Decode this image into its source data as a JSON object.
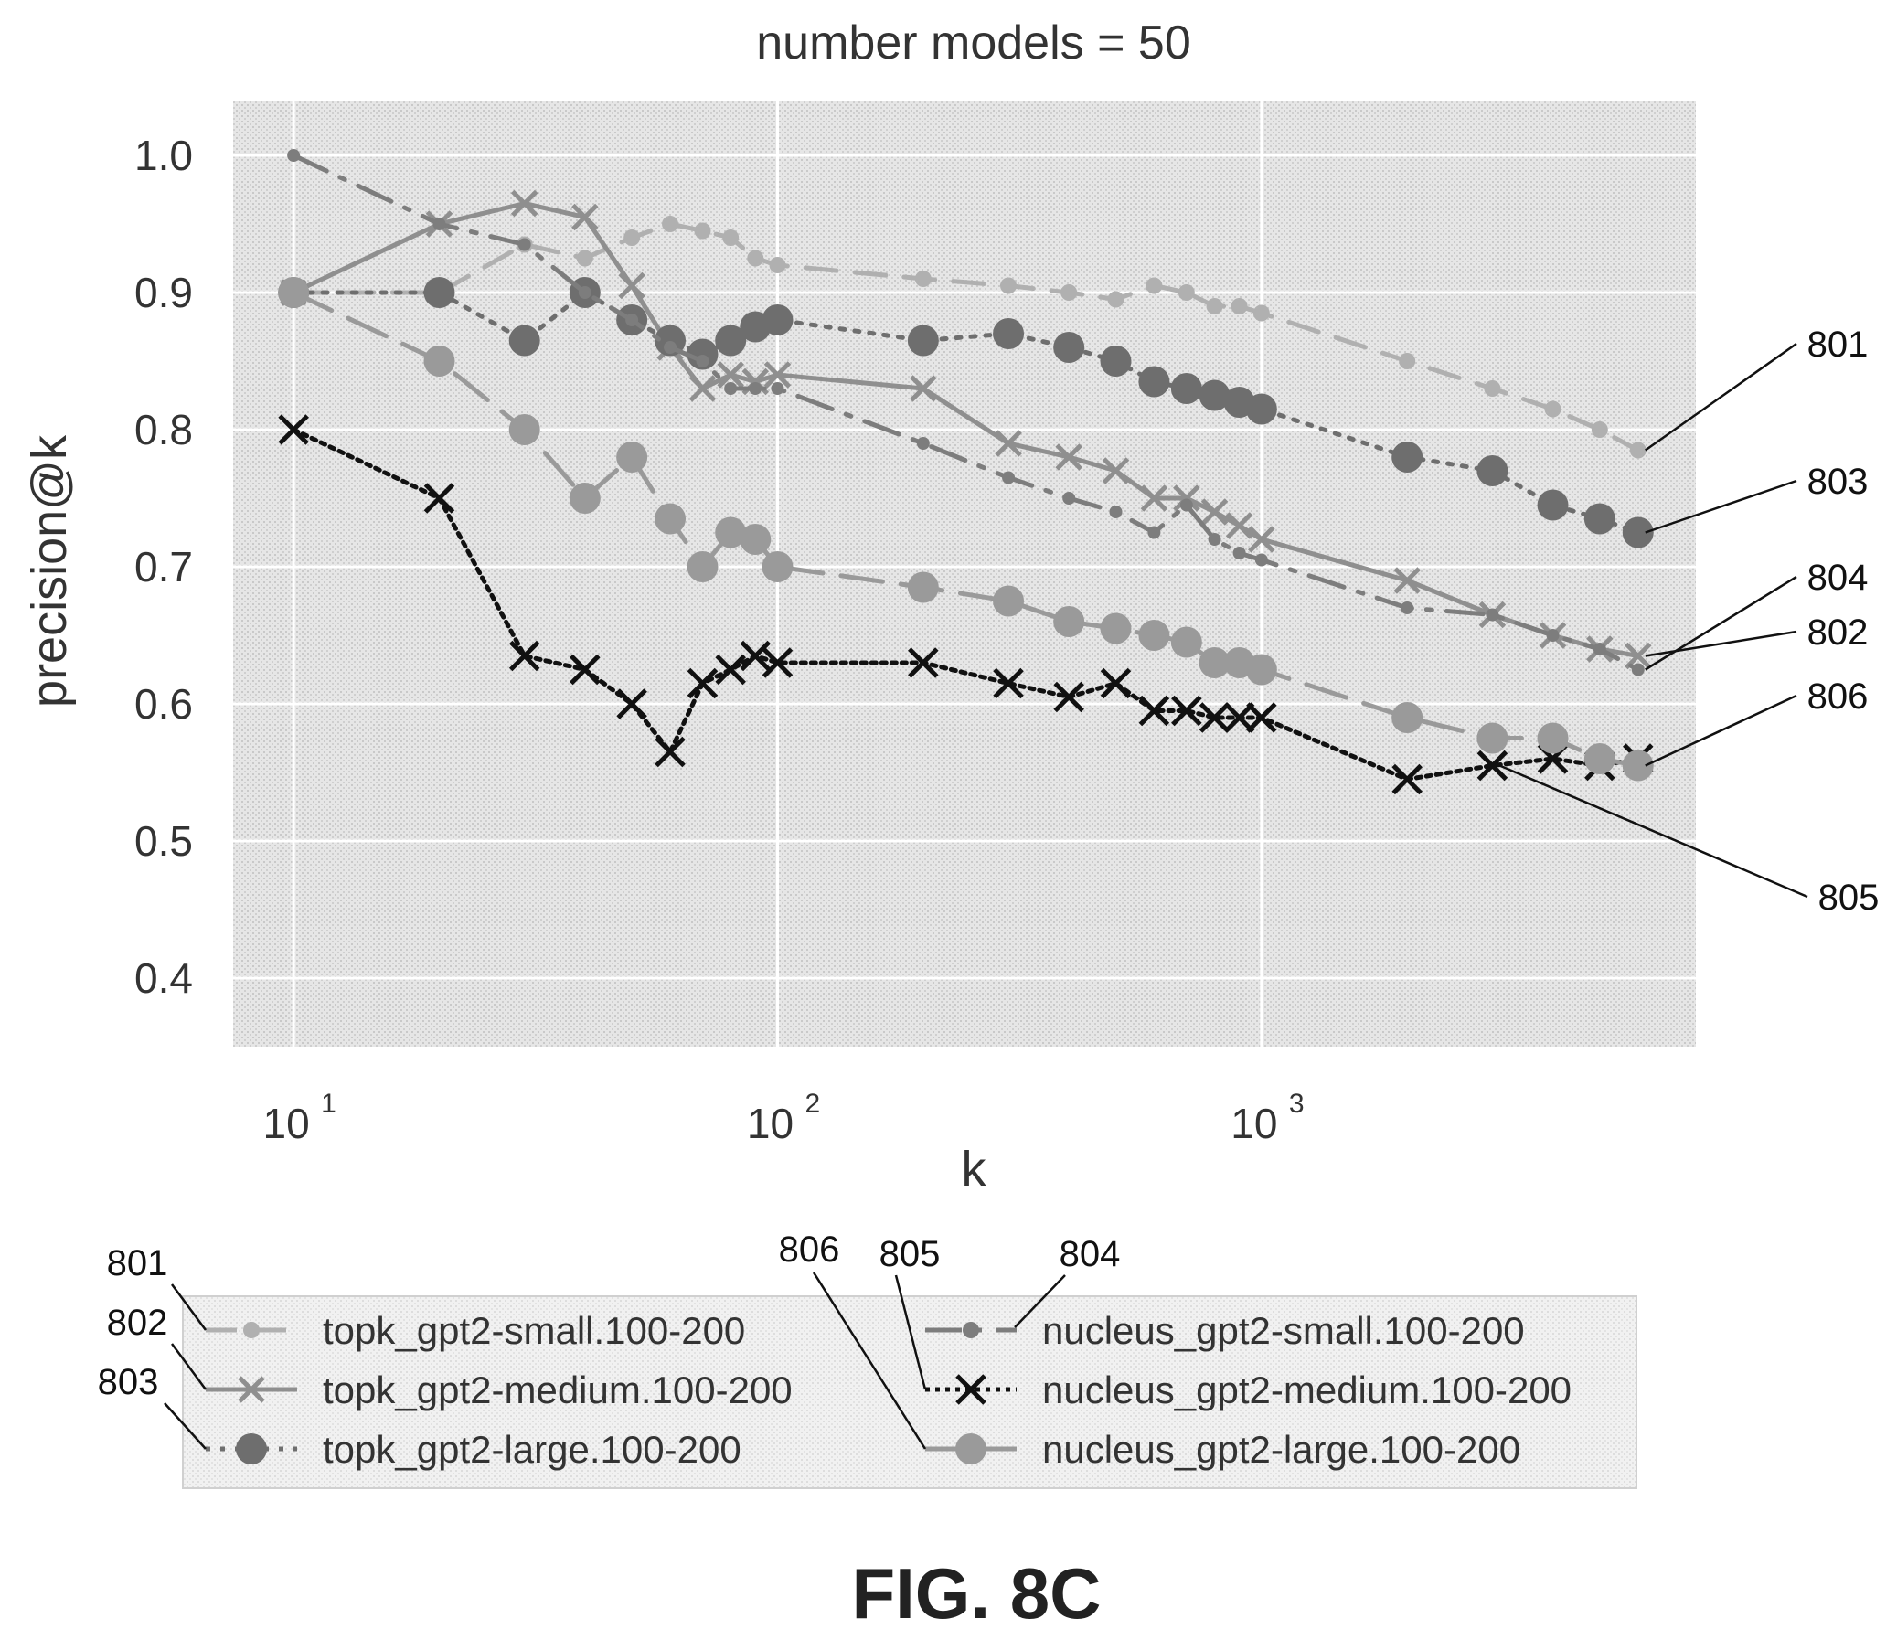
{
  "chart_data": {
    "type": "line",
    "title": "number models = 50",
    "xlabel": "k",
    "ylabel": "precision@k",
    "xscale": "log",
    "xlim": [
      7.5,
      7900
    ],
    "ylim": [
      0.35,
      1.04
    ],
    "x_ticks": [
      {
        "value": 10,
        "base": "10",
        "exp": "1"
      },
      {
        "value": 100,
        "base": "10",
        "exp": "2"
      },
      {
        "value": 1000,
        "base": "10",
        "exp": "3"
      }
    ],
    "y_ticks": [
      {
        "value": 0.4,
        "label": "0.4"
      },
      {
        "value": 0.5,
        "label": "0.5"
      },
      {
        "value": 0.6,
        "label": "0.6"
      },
      {
        "value": 0.7,
        "label": "0.7"
      },
      {
        "value": 0.8,
        "label": "0.8"
      },
      {
        "value": 0.9,
        "label": "0.9"
      },
      {
        "value": 1.0,
        "label": "1.0"
      }
    ],
    "grid": true,
    "legend_position": "bottom",
    "series": [
      {
        "name": "topk_gpt2-small.100-200",
        "ref": "801",
        "color": "#b0b0b0",
        "dash": "34,20",
        "marker": "dot",
        "marker_r": 9,
        "x": [
          10,
          20,
          30,
          40,
          50,
          60,
          70,
          80,
          90,
          100,
          200,
          300,
          400,
          500,
          600,
          700,
          800,
          900,
          1000,
          2000,
          3000,
          4000,
          5000,
          6000
        ],
        "y": [
          0.9,
          0.9,
          0.935,
          0.925,
          0.94,
          0.95,
          0.945,
          0.94,
          0.925,
          0.92,
          0.91,
          0.905,
          0.9,
          0.895,
          0.905,
          0.9,
          0.89,
          0.89,
          0.885,
          0.85,
          0.83,
          0.815,
          0.8,
          0.785
        ]
      },
      {
        "name": "topk_gpt2-medium.100-200",
        "ref": "802",
        "color": "#8f8f8f",
        "dash": "",
        "marker": "x",
        "marker_r": 13,
        "x": [
          10,
          20,
          30,
          40,
          50,
          60,
          70,
          80,
          90,
          100,
          200,
          300,
          400,
          500,
          600,
          700,
          800,
          900,
          1000,
          2000,
          3000,
          4000,
          5000,
          6000
        ],
        "y": [
          0.9,
          0.95,
          0.965,
          0.955,
          0.905,
          0.86,
          0.83,
          0.84,
          0.835,
          0.84,
          0.83,
          0.79,
          0.78,
          0.77,
          0.75,
          0.75,
          0.74,
          0.73,
          0.72,
          0.69,
          0.665,
          0.65,
          0.64,
          0.635
        ]
      },
      {
        "name": "topk_gpt2-large.100-200",
        "ref": "803",
        "color": "#6e6e6e",
        "dash": "5,11",
        "marker": "dot",
        "marker_r": 17,
        "x": [
          10,
          20,
          30,
          40,
          50,
          60,
          70,
          80,
          90,
          100,
          200,
          300,
          400,
          500,
          600,
          700,
          800,
          900,
          1000,
          2000,
          3000,
          4000,
          5000,
          6000
        ],
        "y": [
          0.9,
          0.9,
          0.865,
          0.9,
          0.88,
          0.865,
          0.855,
          0.865,
          0.875,
          0.88,
          0.865,
          0.87,
          0.86,
          0.85,
          0.835,
          0.83,
          0.825,
          0.82,
          0.815,
          0.78,
          0.77,
          0.745,
          0.735,
          0.725
        ]
      },
      {
        "name": "nucleus_gpt2-small.100-200",
        "ref": "804",
        "color": "#7d7d7d",
        "dash": "40,16,6,16",
        "marker": "dot",
        "marker_r": 7,
        "x": [
          10,
          20,
          30,
          40,
          50,
          60,
          70,
          80,
          90,
          100,
          200,
          300,
          400,
          500,
          600,
          700,
          800,
          900,
          1000,
          2000,
          3000,
          4000,
          5000,
          6000
        ],
        "y": [
          1.0,
          0.95,
          0.935,
          0.9,
          0.88,
          0.86,
          0.85,
          0.83,
          0.83,
          0.83,
          0.79,
          0.765,
          0.75,
          0.74,
          0.725,
          0.745,
          0.72,
          0.71,
          0.705,
          0.67,
          0.665,
          0.65,
          0.64,
          0.625
        ]
      },
      {
        "name": "nucleus_gpt2-medium.100-200",
        "ref": "805",
        "color": "#111111",
        "dash": "5,6",
        "marker": "x",
        "marker_r": 15,
        "x": [
          10,
          20,
          30,
          40,
          50,
          60,
          70,
          80,
          90,
          100,
          200,
          300,
          400,
          500,
          600,
          700,
          800,
          900,
          1000,
          2000,
          3000,
          4000,
          5000,
          6000
        ],
        "y": [
          0.8,
          0.75,
          0.635,
          0.625,
          0.6,
          0.565,
          0.615,
          0.625,
          0.635,
          0.63,
          0.63,
          0.615,
          0.605,
          0.615,
          0.595,
          0.595,
          0.59,
          0.59,
          0.59,
          0.545,
          0.555,
          0.56,
          0.555,
          0.56
        ]
      },
      {
        "name": "nucleus_gpt2-large.100-200",
        "ref": "806",
        "color": "#9a9a9a",
        "dash": "46,20",
        "marker": "dot",
        "marker_r": 17,
        "x": [
          10,
          20,
          30,
          40,
          50,
          60,
          70,
          80,
          90,
          100,
          200,
          300,
          400,
          500,
          600,
          700,
          800,
          900,
          1000,
          2000,
          3000,
          4000,
          5000,
          6000
        ],
        "y": [
          0.9,
          0.85,
          0.8,
          0.75,
          0.78,
          0.735,
          0.7,
          0.725,
          0.72,
          0.7,
          0.685,
          0.675,
          0.66,
          0.655,
          0.65,
          0.645,
          0.63,
          0.63,
          0.625,
          0.59,
          0.575,
          0.575,
          0.56,
          0.555
        ]
      }
    ]
  },
  "figure_label": "FIG. 8C"
}
